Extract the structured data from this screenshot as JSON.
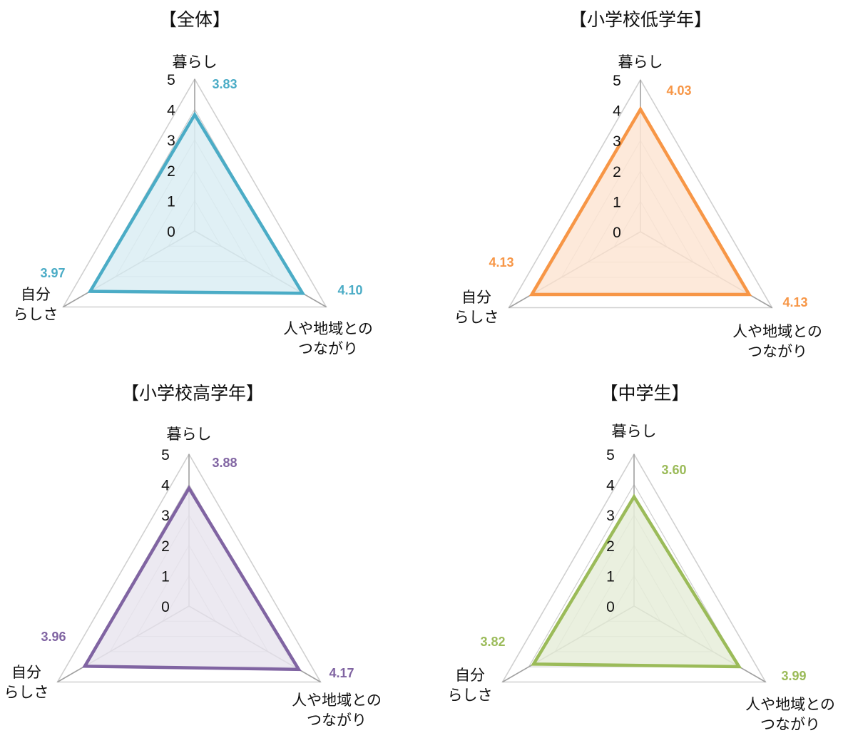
{
  "chart_data": [
    {
      "type": "radar",
      "title": "【全体】",
      "axes": [
        {
          "label": [
            "暮らし"
          ]
        },
        {
          "label": [
            "人や地域との",
            "つながり"
          ]
        },
        {
          "label": [
            "自分",
            "らしさ"
          ]
        }
      ],
      "ticks": [
        0,
        1,
        2,
        3,
        4,
        5
      ],
      "range": [
        0,
        5
      ],
      "values": [
        3.83,
        4.1,
        3.97
      ],
      "value_labels": [
        "3.83",
        "4.10",
        "3.97"
      ],
      "color": "#4bacc6",
      "fill": "#dbedf3"
    },
    {
      "type": "radar",
      "title": "【小学校低学年】",
      "axes": [
        {
          "label": [
            "暮らし"
          ]
        },
        {
          "label": [
            "人や地域との",
            "つながり"
          ]
        },
        {
          "label": [
            "自分",
            "らしさ"
          ]
        }
      ],
      "ticks": [
        0,
        1,
        2,
        3,
        4,
        5
      ],
      "range": [
        0,
        5
      ],
      "values": [
        4.03,
        4.13,
        4.13
      ],
      "value_labels": [
        "4.03",
        "4.13",
        "4.13"
      ],
      "color": "#f79646",
      "fill": "#fde5d4"
    },
    {
      "type": "radar",
      "title": "【小学校高学年】",
      "axes": [
        {
          "label": [
            "暮らし"
          ]
        },
        {
          "label": [
            "人や地域との",
            "つながり"
          ]
        },
        {
          "label": [
            "自分",
            "らしさ"
          ]
        }
      ],
      "ticks": [
        0,
        1,
        2,
        3,
        4,
        5
      ],
      "range": [
        0,
        5
      ],
      "values": [
        3.88,
        4.17,
        3.96
      ],
      "value_labels": [
        "3.88",
        "4.17",
        "3.96"
      ],
      "color": "#8064a2",
      "fill": "#e9e5ef"
    },
    {
      "type": "radar",
      "title": "【中学生】",
      "axes": [
        {
          "label": [
            "暮らし"
          ]
        },
        {
          "label": [
            "人や地域との",
            "つながり"
          ]
        },
        {
          "label": [
            "自分",
            "らしさ"
          ]
        }
      ],
      "ticks": [
        0,
        1,
        2,
        3,
        4,
        5
      ],
      "range": [
        0,
        5
      ],
      "values": [
        3.6,
        3.99,
        3.82
      ],
      "value_labels": [
        "3.60",
        "3.99",
        "3.82"
      ],
      "color": "#9bbb59",
      "fill": "#e6edd9"
    }
  ]
}
